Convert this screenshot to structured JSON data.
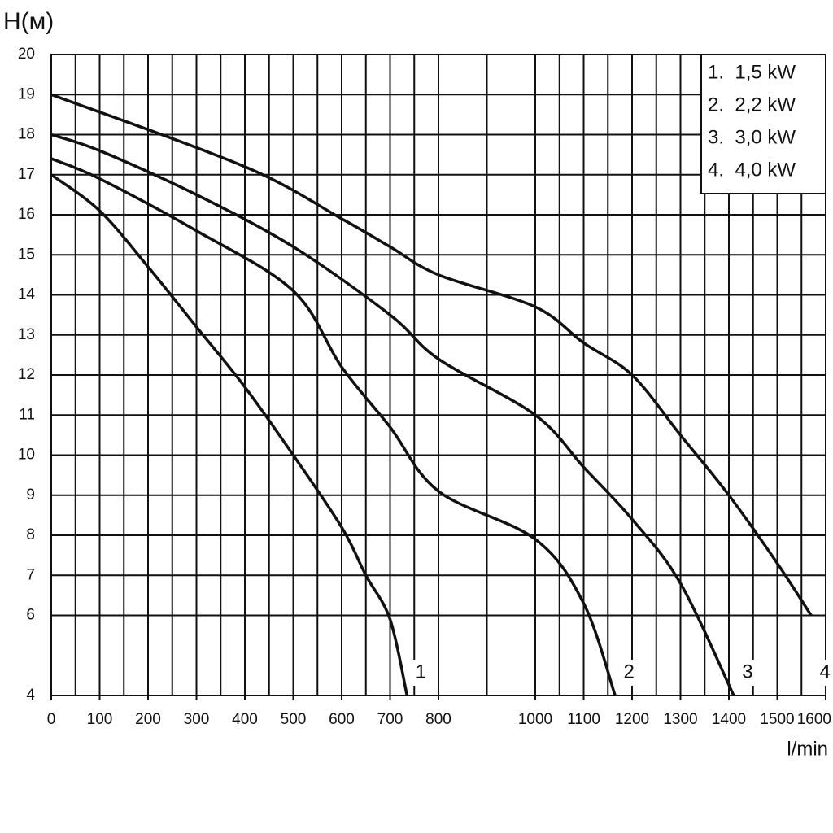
{
  "chart_data": {
    "type": "line",
    "y_label": "H(м)",
    "x_label": "l/min",
    "xlim": [
      0,
      1600
    ],
    "ylim": [
      4,
      20
    ],
    "xticks": [
      0,
      100,
      200,
      300,
      400,
      500,
      600,
      700,
      800,
      1000,
      1100,
      1200,
      1300,
      1400,
      1500,
      1600
    ],
    "yticks": [
      4,
      6,
      7,
      8,
      9,
      10,
      11,
      12,
      13,
      14,
      15,
      16,
      17,
      18,
      19,
      20
    ],
    "grid": true,
    "legend": "upper right",
    "series": [
      {
        "name": "1.  1,5 kW",
        "end_label": "1",
        "color": "#111111",
        "x": [
          0,
          100,
          200,
          300,
          400,
          500,
          600,
          650,
          700,
          735
        ],
        "values": [
          17,
          16.1,
          14.7,
          13.2,
          11.7,
          10,
          8.2,
          7,
          5.9,
          4
        ]
      },
      {
        "name": "2.  2,2 kW",
        "end_label": "2",
        "color": "#111111",
        "x": [
          0,
          100,
          300,
          500,
          600,
          700,
          800,
          1000,
          1100,
          1165
        ],
        "values": [
          17.4,
          16.9,
          15.6,
          14.1,
          12.2,
          10.7,
          9.1,
          7.9,
          6.3,
          4
        ]
      },
      {
        "name": "3.  3,0 kW",
        "end_label": "3",
        "color": "#111111",
        "x": [
          0,
          100,
          300,
          500,
          700,
          800,
          1000,
          1100,
          1200,
          1300,
          1410
        ],
        "values": [
          18,
          17.6,
          16.5,
          15.2,
          13.5,
          12.4,
          11,
          9.7,
          8.4,
          6.8,
          4
        ]
      },
      {
        "name": "4.  4,0 kW",
        "end_label": "4",
        "color": "#111111",
        "x": [
          0,
          400,
          600,
          700,
          800,
          1000,
          1100,
          1200,
          1300,
          1400,
          1500,
          1570
        ],
        "values": [
          19,
          17.2,
          15.9,
          15.2,
          14.5,
          13.7,
          12.8,
          12,
          10.5,
          9,
          7.3,
          6
        ]
      }
    ]
  }
}
